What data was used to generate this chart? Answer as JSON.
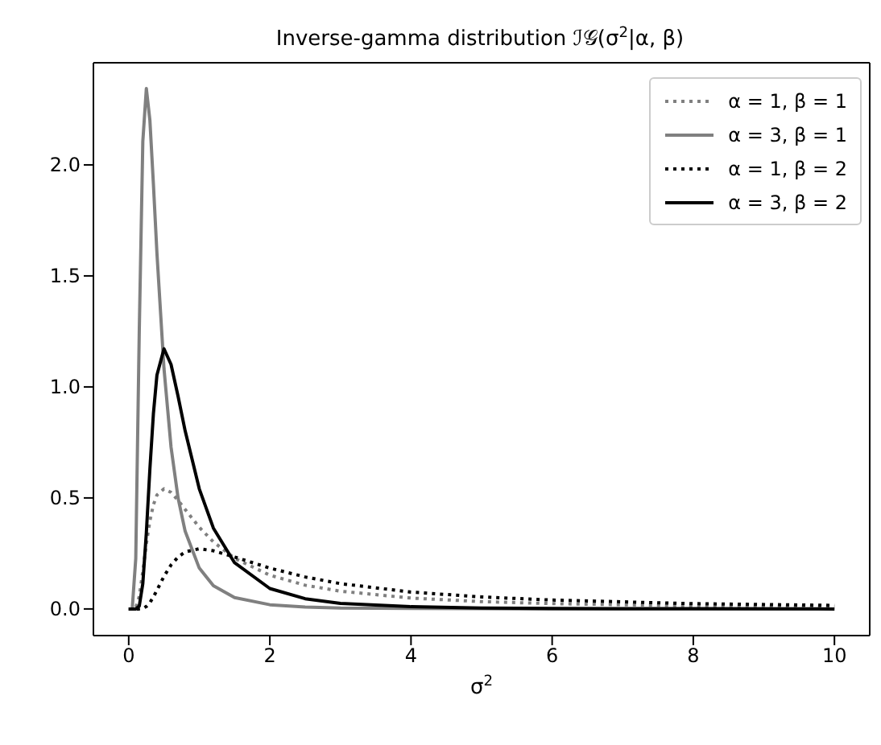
{
  "chart_data": {
    "type": "line",
    "title": "Inverse-gamma distribution ℐ𝒢(σ$^{2}$|α, β)",
    "xlabel": "σ$^{2}$",
    "x": [
      0,
      0.05,
      0.1,
      0.15,
      0.2,
      0.25,
      0.3,
      0.35,
      0.4,
      0.5,
      0.6,
      0.7,
      0.8,
      1,
      1.2,
      1.5,
      2,
      2.5,
      3,
      4,
      5,
      6,
      8,
      10
    ],
    "series": [
      {
        "name": "α = 1, β = 1",
        "color": "#808080",
        "line_style": "dotted",
        "values": [
          0,
          0,
          0.005,
          0.057,
          0.168,
          0.293,
          0.396,
          0.469,
          0.513,
          0.541,
          0.525,
          0.489,
          0.448,
          0.368,
          0.302,
          0.228,
          0.152,
          0.107,
          0.08,
          0.049,
          0.033,
          0.024,
          0.014,
          0.009
        ]
      },
      {
        "name": "α = 3, β = 1",
        "color": "#808080",
        "line_style": "solid",
        "values": [
          0,
          0,
          0.227,
          1.257,
          2.105,
          2.344,
          2.202,
          1.914,
          1.603,
          1.083,
          0.729,
          0.499,
          0.35,
          0.184,
          0.105,
          0.051,
          0.019,
          0.009,
          0.004,
          0.002,
          0.001,
          0,
          0,
          0
        ]
      },
      {
        "name": "α = 1, β = 2",
        "color": "#000000",
        "line_style": "dotted",
        "values": [
          0,
          0,
          0,
          0,
          0.002,
          0.011,
          0.028,
          0.054,
          0.084,
          0.147,
          0.198,
          0.234,
          0.257,
          0.271,
          0.262,
          0.234,
          0.184,
          0.144,
          0.114,
          0.076,
          0.054,
          0.04,
          0.024,
          0.016
        ]
      },
      {
        "name": "α = 3, β = 2",
        "color": "#000000",
        "line_style": "solid",
        "values": [
          0,
          0,
          0,
          0.013,
          0.114,
          0.343,
          0.629,
          0.879,
          1.053,
          1.172,
          1.101,
          0.957,
          0.802,
          0.541,
          0.364,
          0.208,
          0.092,
          0.046,
          0.025,
          0.01,
          0.004,
          0.002,
          0.001,
          0
        ]
      }
    ],
    "xlim": [
      -0.5,
      10.5
    ],
    "ylim": [
      -0.12,
      2.46
    ],
    "xticks": [
      0,
      2,
      4,
      6,
      8,
      10
    ],
    "yticks": [
      {
        "value": 0,
        "label": "0.0"
      },
      {
        "value": 0.5,
        "label": "0.5"
      },
      {
        "value": 1,
        "label": "1.0"
      },
      {
        "value": 1.5,
        "label": "1.5"
      },
      {
        "value": 2,
        "label": "2.0"
      }
    ],
    "grid": false,
    "legend": "top right",
    "marker": "none"
  }
}
